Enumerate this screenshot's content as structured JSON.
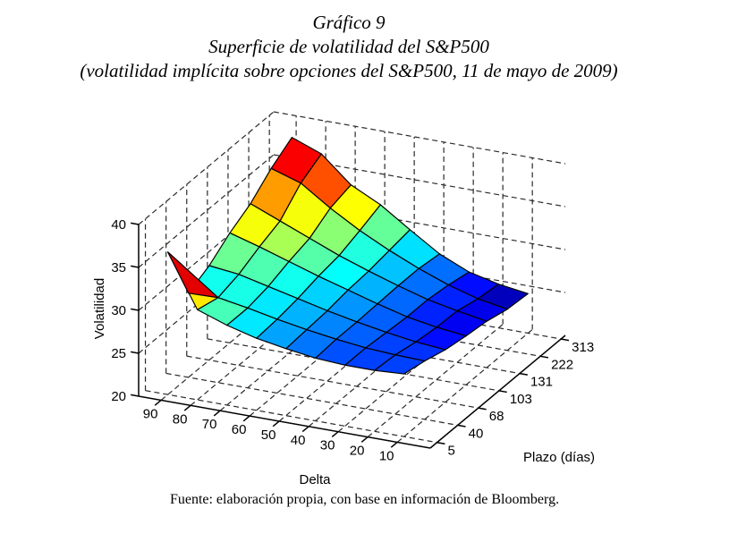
{
  "header": {
    "line1": "Gráfico 9",
    "line2": "Superficie de volatilidad del S&P500",
    "line3": "(volatilidad implícita sobre opciones del S&P500, 11 de mayo de 2009)"
  },
  "footer": {
    "source": "Fuente: elaboración propia, con base en información de Bloomberg."
  },
  "chart_data": {
    "type": "surface",
    "title": "Superficie de volatilidad del S&P500",
    "xlabel": "Delta",
    "ylabel": "Plazo (días)",
    "zlabel": "Volatilidad",
    "x_ticks": [
      90,
      80,
      70,
      60,
      50,
      40,
      30,
      20,
      10
    ],
    "y_ticks": [
      5,
      40,
      68,
      103,
      131,
      222,
      313
    ],
    "z_ticks": [
      20,
      25,
      30,
      35,
      40
    ],
    "zlim": [
      20,
      40
    ],
    "colormap": "jet",
    "grid": "dashed",
    "surface_volatility_rows_plazo_cols_delta": [
      [
        36.6,
        30.5,
        29.3,
        28.4,
        27.8,
        27.3,
        27.1,
        27.1,
        27.3
      ],
      [
        29.8,
        29.9,
        29.3,
        28.6,
        28.0,
        27.5,
        27.1,
        26.9,
        26.8
      ],
      [
        31.0,
        30.6,
        29.8,
        29.0,
        28.2,
        27.5,
        26.9,
        26.4,
        26.1
      ],
      [
        32.8,
        31.8,
        30.7,
        29.6,
        28.6,
        27.6,
        26.7,
        26.1,
        25.7
      ],
      [
        34.2,
        32.8,
        31.4,
        30.0,
        28.8,
        27.7,
        26.7,
        26.0,
        25.4
      ],
      [
        36.3,
        35.2,
        32.9,
        30.9,
        29.2,
        27.7,
        26.4,
        25.4,
        24.8
      ],
      [
        37.9,
        36.6,
        33.6,
        31.9,
        29.6,
        27.4,
        25.9,
        25.1,
        24.6
      ]
    ],
    "colors": {
      "mesh_line": "#000000",
      "grid_line": "#2a2a2a",
      "axis_line": "#000000",
      "lowest": "#00008f",
      "highest": "#8f0000"
    }
  }
}
